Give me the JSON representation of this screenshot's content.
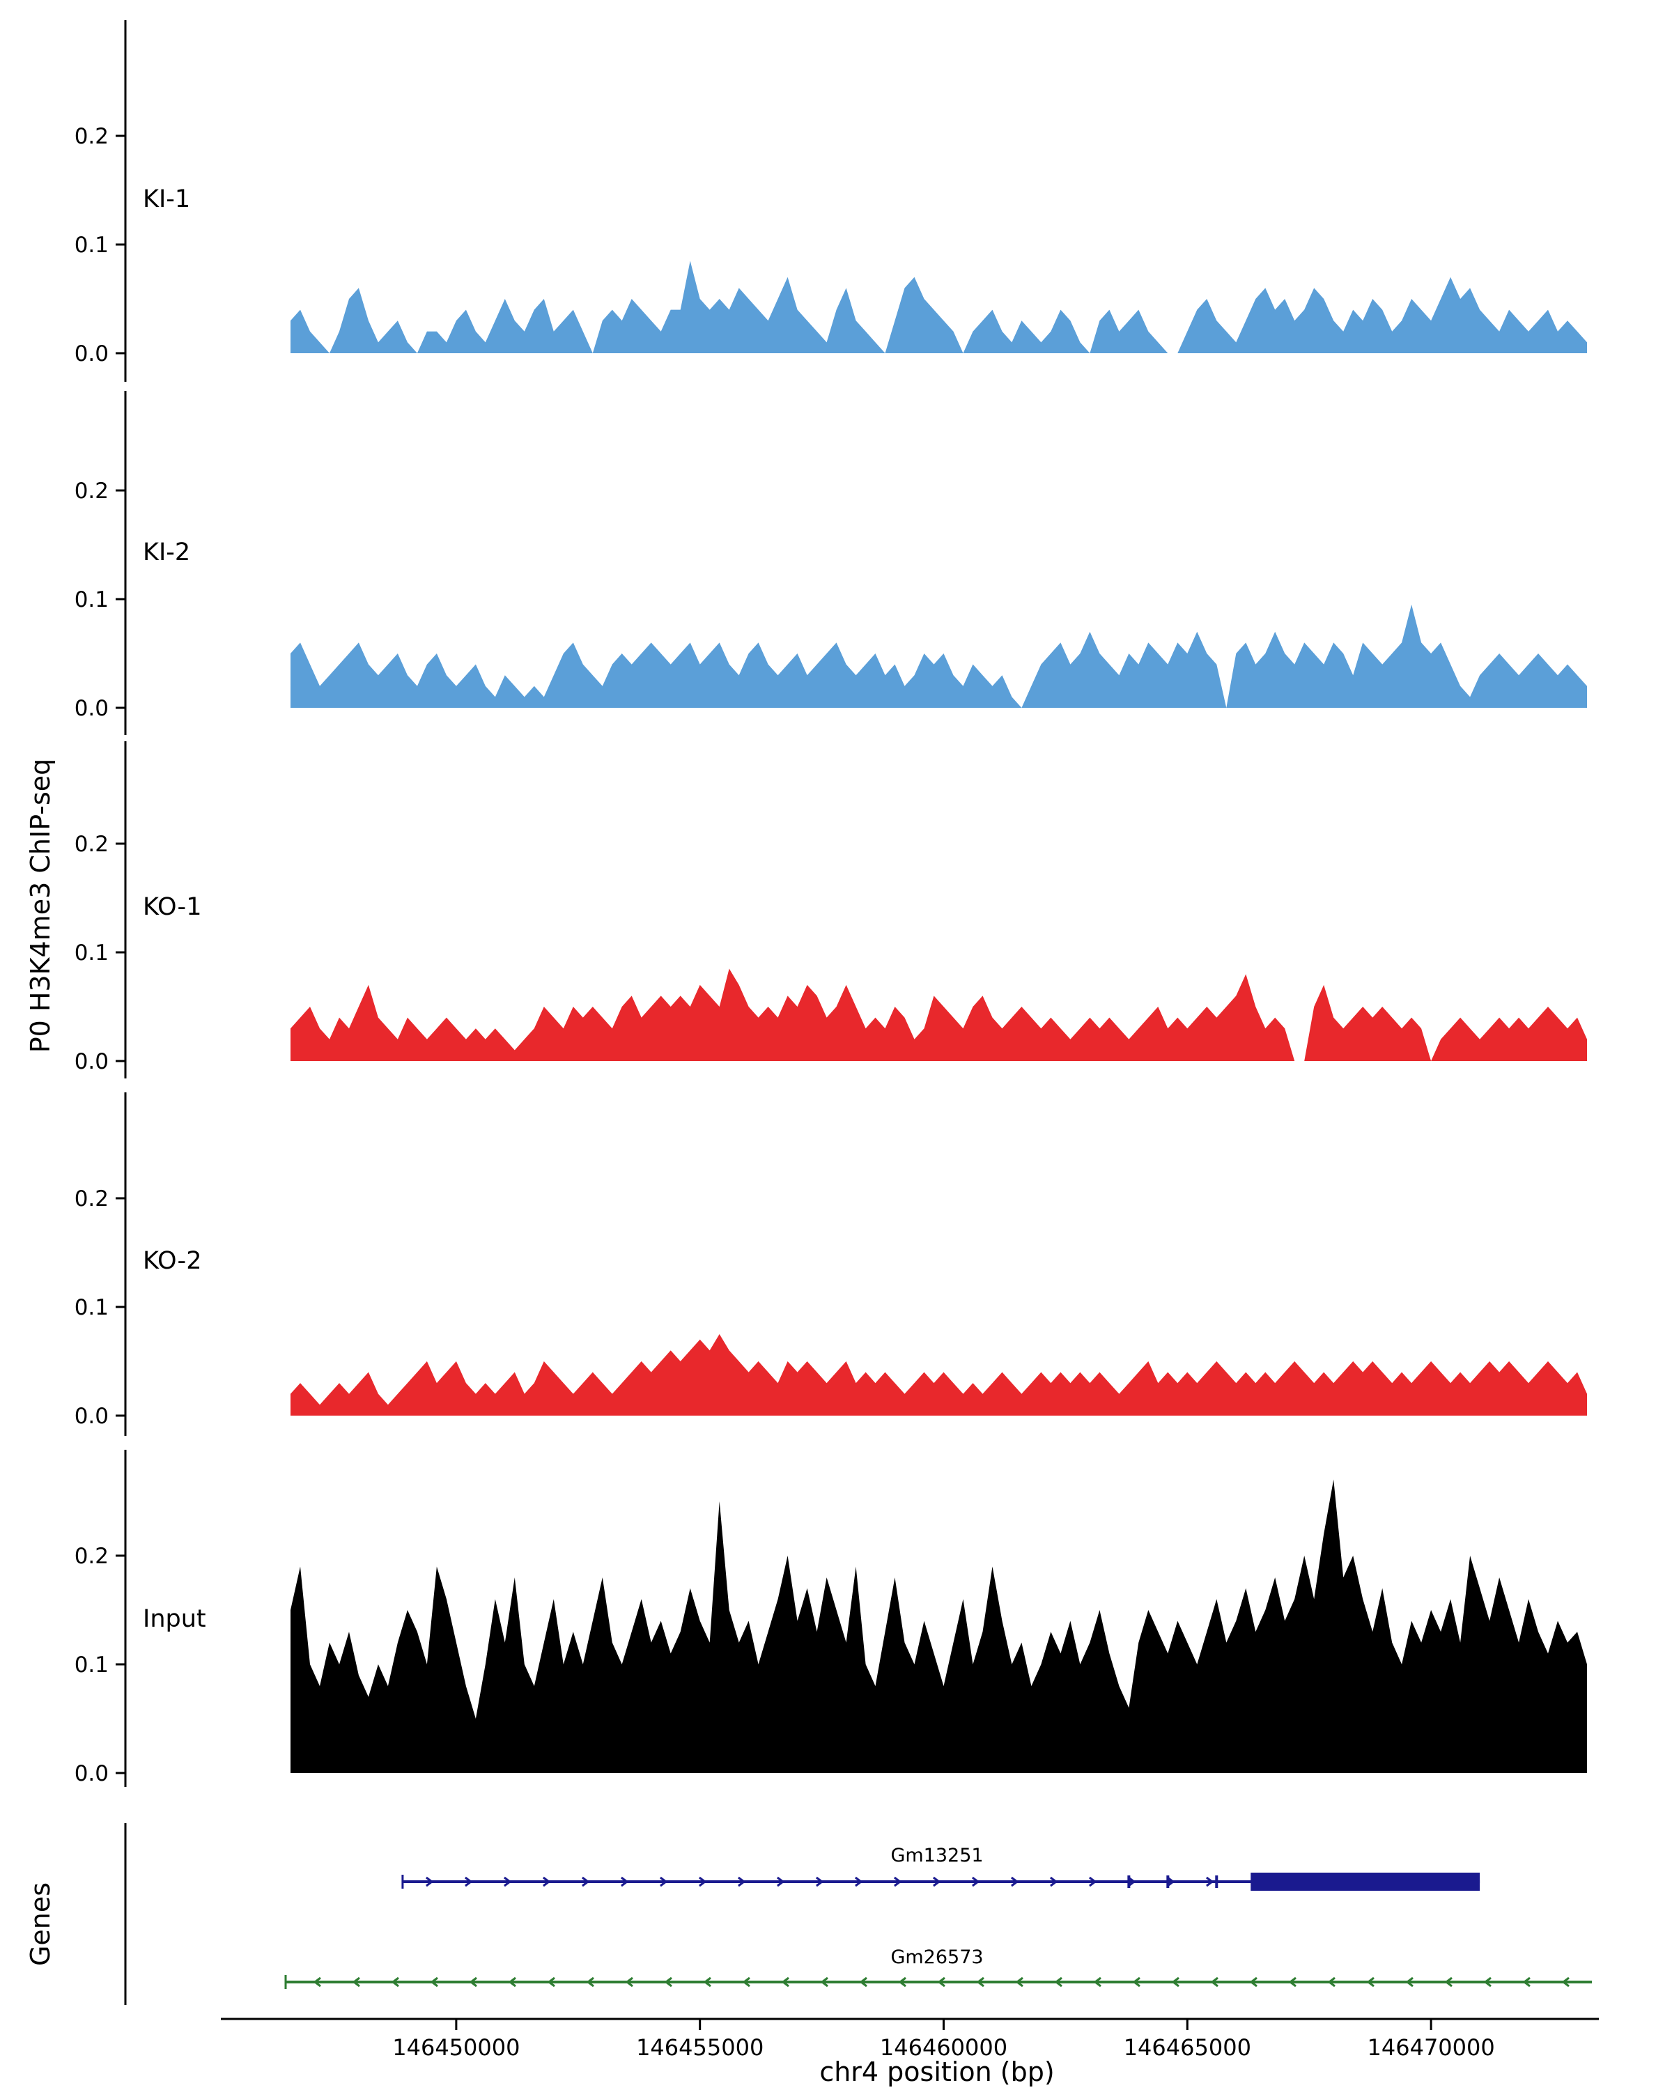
{
  "chart_data": {
    "type": "area",
    "title": "",
    "ylabel": "P0 H3K4me3 ChIP-seq",
    "xlabel": "chr4 position (bp)",
    "x_start": 146446600,
    "x_step": 200,
    "bp_min": 146446500,
    "bp_max": 146473300,
    "x_ticks": [
      146450000,
      146455000,
      146460000,
      146465000,
      146470000
    ],
    "y_ticks": [
      0.0,
      0.1,
      0.2
    ],
    "ylim": [
      0,
      0.28
    ],
    "grid": false,
    "legend_position": "none",
    "tracks": [
      {
        "label": "KI-1",
        "color": "#5B9FD8",
        "values": [
          0.03,
          0.04,
          0.02,
          0.01,
          0.0,
          0.02,
          0.05,
          0.06,
          0.03,
          0.01,
          0.02,
          0.03,
          0.01,
          0.0,
          0.02,
          0.02,
          0.01,
          0.03,
          0.04,
          0.02,
          0.01,
          0.03,
          0.05,
          0.03,
          0.02,
          0.04,
          0.05,
          0.02,
          0.03,
          0.04,
          0.02,
          0.0,
          0.03,
          0.04,
          0.03,
          0.05,
          0.04,
          0.03,
          0.02,
          0.04,
          0.04,
          0.085,
          0.05,
          0.04,
          0.05,
          0.04,
          0.06,
          0.05,
          0.04,
          0.03,
          0.05,
          0.07,
          0.04,
          0.03,
          0.02,
          0.01,
          0.04,
          0.06,
          0.03,
          0.02,
          0.01,
          0.0,
          0.03,
          0.06,
          0.07,
          0.05,
          0.04,
          0.03,
          0.02,
          0.0,
          0.02,
          0.03,
          0.04,
          0.02,
          0.01,
          0.03,
          0.02,
          0.01,
          0.02,
          0.04,
          0.03,
          0.01,
          0.0,
          0.03,
          0.04,
          0.02,
          0.03,
          0.04,
          0.02,
          0.01,
          0.0,
          0.0,
          0.02,
          0.04,
          0.05,
          0.03,
          0.02,
          0.01,
          0.03,
          0.05,
          0.06,
          0.04,
          0.05,
          0.03,
          0.04,
          0.06,
          0.05,
          0.03,
          0.02,
          0.04,
          0.03,
          0.05,
          0.04,
          0.02,
          0.03,
          0.05,
          0.04,
          0.03,
          0.05,
          0.07,
          0.05,
          0.06,
          0.04,
          0.03,
          0.02,
          0.04,
          0.03,
          0.02,
          0.03,
          0.04,
          0.02,
          0.03,
          0.02,
          0.01
        ]
      },
      {
        "label": "KI-2",
        "color": "#5B9FD8",
        "values": [
          0.05,
          0.06,
          0.04,
          0.02,
          0.03,
          0.04,
          0.05,
          0.06,
          0.04,
          0.03,
          0.04,
          0.05,
          0.03,
          0.02,
          0.04,
          0.05,
          0.03,
          0.02,
          0.03,
          0.04,
          0.02,
          0.01,
          0.03,
          0.02,
          0.01,
          0.02,
          0.01,
          0.03,
          0.05,
          0.06,
          0.04,
          0.03,
          0.02,
          0.04,
          0.05,
          0.04,
          0.05,
          0.06,
          0.05,
          0.04,
          0.05,
          0.06,
          0.04,
          0.05,
          0.06,
          0.04,
          0.03,
          0.05,
          0.06,
          0.04,
          0.03,
          0.04,
          0.05,
          0.03,
          0.04,
          0.05,
          0.06,
          0.04,
          0.03,
          0.04,
          0.05,
          0.03,
          0.04,
          0.02,
          0.03,
          0.05,
          0.04,
          0.05,
          0.03,
          0.02,
          0.04,
          0.03,
          0.02,
          0.03,
          0.01,
          0.0,
          0.02,
          0.04,
          0.05,
          0.06,
          0.04,
          0.05,
          0.07,
          0.05,
          0.04,
          0.03,
          0.05,
          0.04,
          0.06,
          0.05,
          0.04,
          0.06,
          0.05,
          0.07,
          0.05,
          0.04,
          0.0,
          0.05,
          0.06,
          0.04,
          0.05,
          0.07,
          0.05,
          0.04,
          0.06,
          0.05,
          0.04,
          0.06,
          0.05,
          0.03,
          0.06,
          0.05,
          0.04,
          0.05,
          0.06,
          0.095,
          0.06,
          0.05,
          0.06,
          0.04,
          0.02,
          0.01,
          0.03,
          0.04,
          0.05,
          0.04,
          0.03,
          0.04,
          0.05,
          0.04,
          0.03,
          0.04,
          0.03,
          0.02
        ]
      },
      {
        "label": "KO-1",
        "color": "#E8282C",
        "values": [
          0.03,
          0.04,
          0.05,
          0.03,
          0.02,
          0.04,
          0.03,
          0.05,
          0.07,
          0.04,
          0.03,
          0.02,
          0.04,
          0.03,
          0.02,
          0.03,
          0.04,
          0.03,
          0.02,
          0.03,
          0.02,
          0.03,
          0.02,
          0.01,
          0.02,
          0.03,
          0.05,
          0.04,
          0.03,
          0.05,
          0.04,
          0.05,
          0.04,
          0.03,
          0.05,
          0.06,
          0.04,
          0.05,
          0.06,
          0.05,
          0.06,
          0.05,
          0.07,
          0.06,
          0.05,
          0.085,
          0.07,
          0.05,
          0.04,
          0.05,
          0.04,
          0.06,
          0.05,
          0.07,
          0.06,
          0.04,
          0.05,
          0.07,
          0.05,
          0.03,
          0.04,
          0.03,
          0.05,
          0.04,
          0.02,
          0.03,
          0.06,
          0.05,
          0.04,
          0.03,
          0.05,
          0.06,
          0.04,
          0.03,
          0.04,
          0.05,
          0.04,
          0.03,
          0.04,
          0.03,
          0.02,
          0.03,
          0.04,
          0.03,
          0.04,
          0.03,
          0.02,
          0.03,
          0.04,
          0.05,
          0.03,
          0.04,
          0.03,
          0.04,
          0.05,
          0.04,
          0.05,
          0.06,
          0.08,
          0.05,
          0.03,
          0.04,
          0.03,
          0.0,
          0.0,
          0.05,
          0.07,
          0.04,
          0.03,
          0.04,
          0.05,
          0.04,
          0.05,
          0.04,
          0.03,
          0.04,
          0.03,
          0.0,
          0.02,
          0.03,
          0.04,
          0.03,
          0.02,
          0.03,
          0.04,
          0.03,
          0.04,
          0.03,
          0.04,
          0.05,
          0.04,
          0.03,
          0.04,
          0.02
        ]
      },
      {
        "label": "KO-2",
        "color": "#E8282C",
        "values": [
          0.02,
          0.03,
          0.02,
          0.01,
          0.02,
          0.03,
          0.02,
          0.03,
          0.04,
          0.02,
          0.01,
          0.02,
          0.03,
          0.04,
          0.05,
          0.03,
          0.04,
          0.05,
          0.03,
          0.02,
          0.03,
          0.02,
          0.03,
          0.04,
          0.02,
          0.03,
          0.05,
          0.04,
          0.03,
          0.02,
          0.03,
          0.04,
          0.03,
          0.02,
          0.03,
          0.04,
          0.05,
          0.04,
          0.05,
          0.06,
          0.05,
          0.06,
          0.07,
          0.06,
          0.075,
          0.06,
          0.05,
          0.04,
          0.05,
          0.04,
          0.03,
          0.05,
          0.04,
          0.05,
          0.04,
          0.03,
          0.04,
          0.05,
          0.03,
          0.04,
          0.03,
          0.04,
          0.03,
          0.02,
          0.03,
          0.04,
          0.03,
          0.04,
          0.03,
          0.02,
          0.03,
          0.02,
          0.03,
          0.04,
          0.03,
          0.02,
          0.03,
          0.04,
          0.03,
          0.04,
          0.03,
          0.04,
          0.03,
          0.04,
          0.03,
          0.02,
          0.03,
          0.04,
          0.05,
          0.03,
          0.04,
          0.03,
          0.04,
          0.03,
          0.04,
          0.05,
          0.04,
          0.03,
          0.04,
          0.03,
          0.04,
          0.03,
          0.04,
          0.05,
          0.04,
          0.03,
          0.04,
          0.03,
          0.04,
          0.05,
          0.04,
          0.05,
          0.04,
          0.03,
          0.04,
          0.03,
          0.04,
          0.05,
          0.04,
          0.03,
          0.04,
          0.03,
          0.04,
          0.05,
          0.04,
          0.05,
          0.04,
          0.03,
          0.04,
          0.05,
          0.04,
          0.03,
          0.04,
          0.02
        ]
      },
      {
        "label": "Input",
        "color": "#000000",
        "values": [
          0.15,
          0.19,
          0.1,
          0.08,
          0.12,
          0.1,
          0.13,
          0.09,
          0.07,
          0.1,
          0.08,
          0.12,
          0.15,
          0.13,
          0.1,
          0.19,
          0.16,
          0.12,
          0.08,
          0.05,
          0.1,
          0.16,
          0.12,
          0.18,
          0.1,
          0.08,
          0.12,
          0.16,
          0.1,
          0.13,
          0.1,
          0.14,
          0.18,
          0.12,
          0.1,
          0.13,
          0.16,
          0.12,
          0.14,
          0.11,
          0.13,
          0.17,
          0.14,
          0.12,
          0.25,
          0.15,
          0.12,
          0.14,
          0.1,
          0.13,
          0.16,
          0.2,
          0.14,
          0.17,
          0.13,
          0.18,
          0.15,
          0.12,
          0.19,
          0.1,
          0.08,
          0.13,
          0.18,
          0.12,
          0.1,
          0.14,
          0.11,
          0.08,
          0.12,
          0.16,
          0.1,
          0.13,
          0.19,
          0.14,
          0.1,
          0.12,
          0.08,
          0.1,
          0.13,
          0.11,
          0.14,
          0.1,
          0.12,
          0.15,
          0.11,
          0.08,
          0.06,
          0.12,
          0.15,
          0.13,
          0.11,
          0.14,
          0.12,
          0.1,
          0.13,
          0.16,
          0.12,
          0.14,
          0.17,
          0.13,
          0.15,
          0.18,
          0.14,
          0.16,
          0.2,
          0.16,
          0.22,
          0.27,
          0.18,
          0.2,
          0.16,
          0.13,
          0.17,
          0.12,
          0.1,
          0.14,
          0.12,
          0.15,
          0.13,
          0.16,
          0.12,
          0.2,
          0.17,
          0.14,
          0.18,
          0.15,
          0.12,
          0.16,
          0.13,
          0.11,
          0.14,
          0.12,
          0.13,
          0.1
        ]
      }
    ],
    "genes_panel": {
      "label": "Genes",
      "genes": [
        {
          "name": "Gm13251",
          "color": "#1A1A8F",
          "strand": "+",
          "start": 146448900,
          "end": 146471000,
          "thick_start": 146466300,
          "exon_ticks": [
            146463800,
            146464600,
            146465600
          ]
        },
        {
          "name": "Gm26573",
          "color": "#2E7D32",
          "strand": "-",
          "start": 146446500,
          "end": 146473300,
          "thick_start": null,
          "exon_ticks": []
        }
      ]
    }
  }
}
